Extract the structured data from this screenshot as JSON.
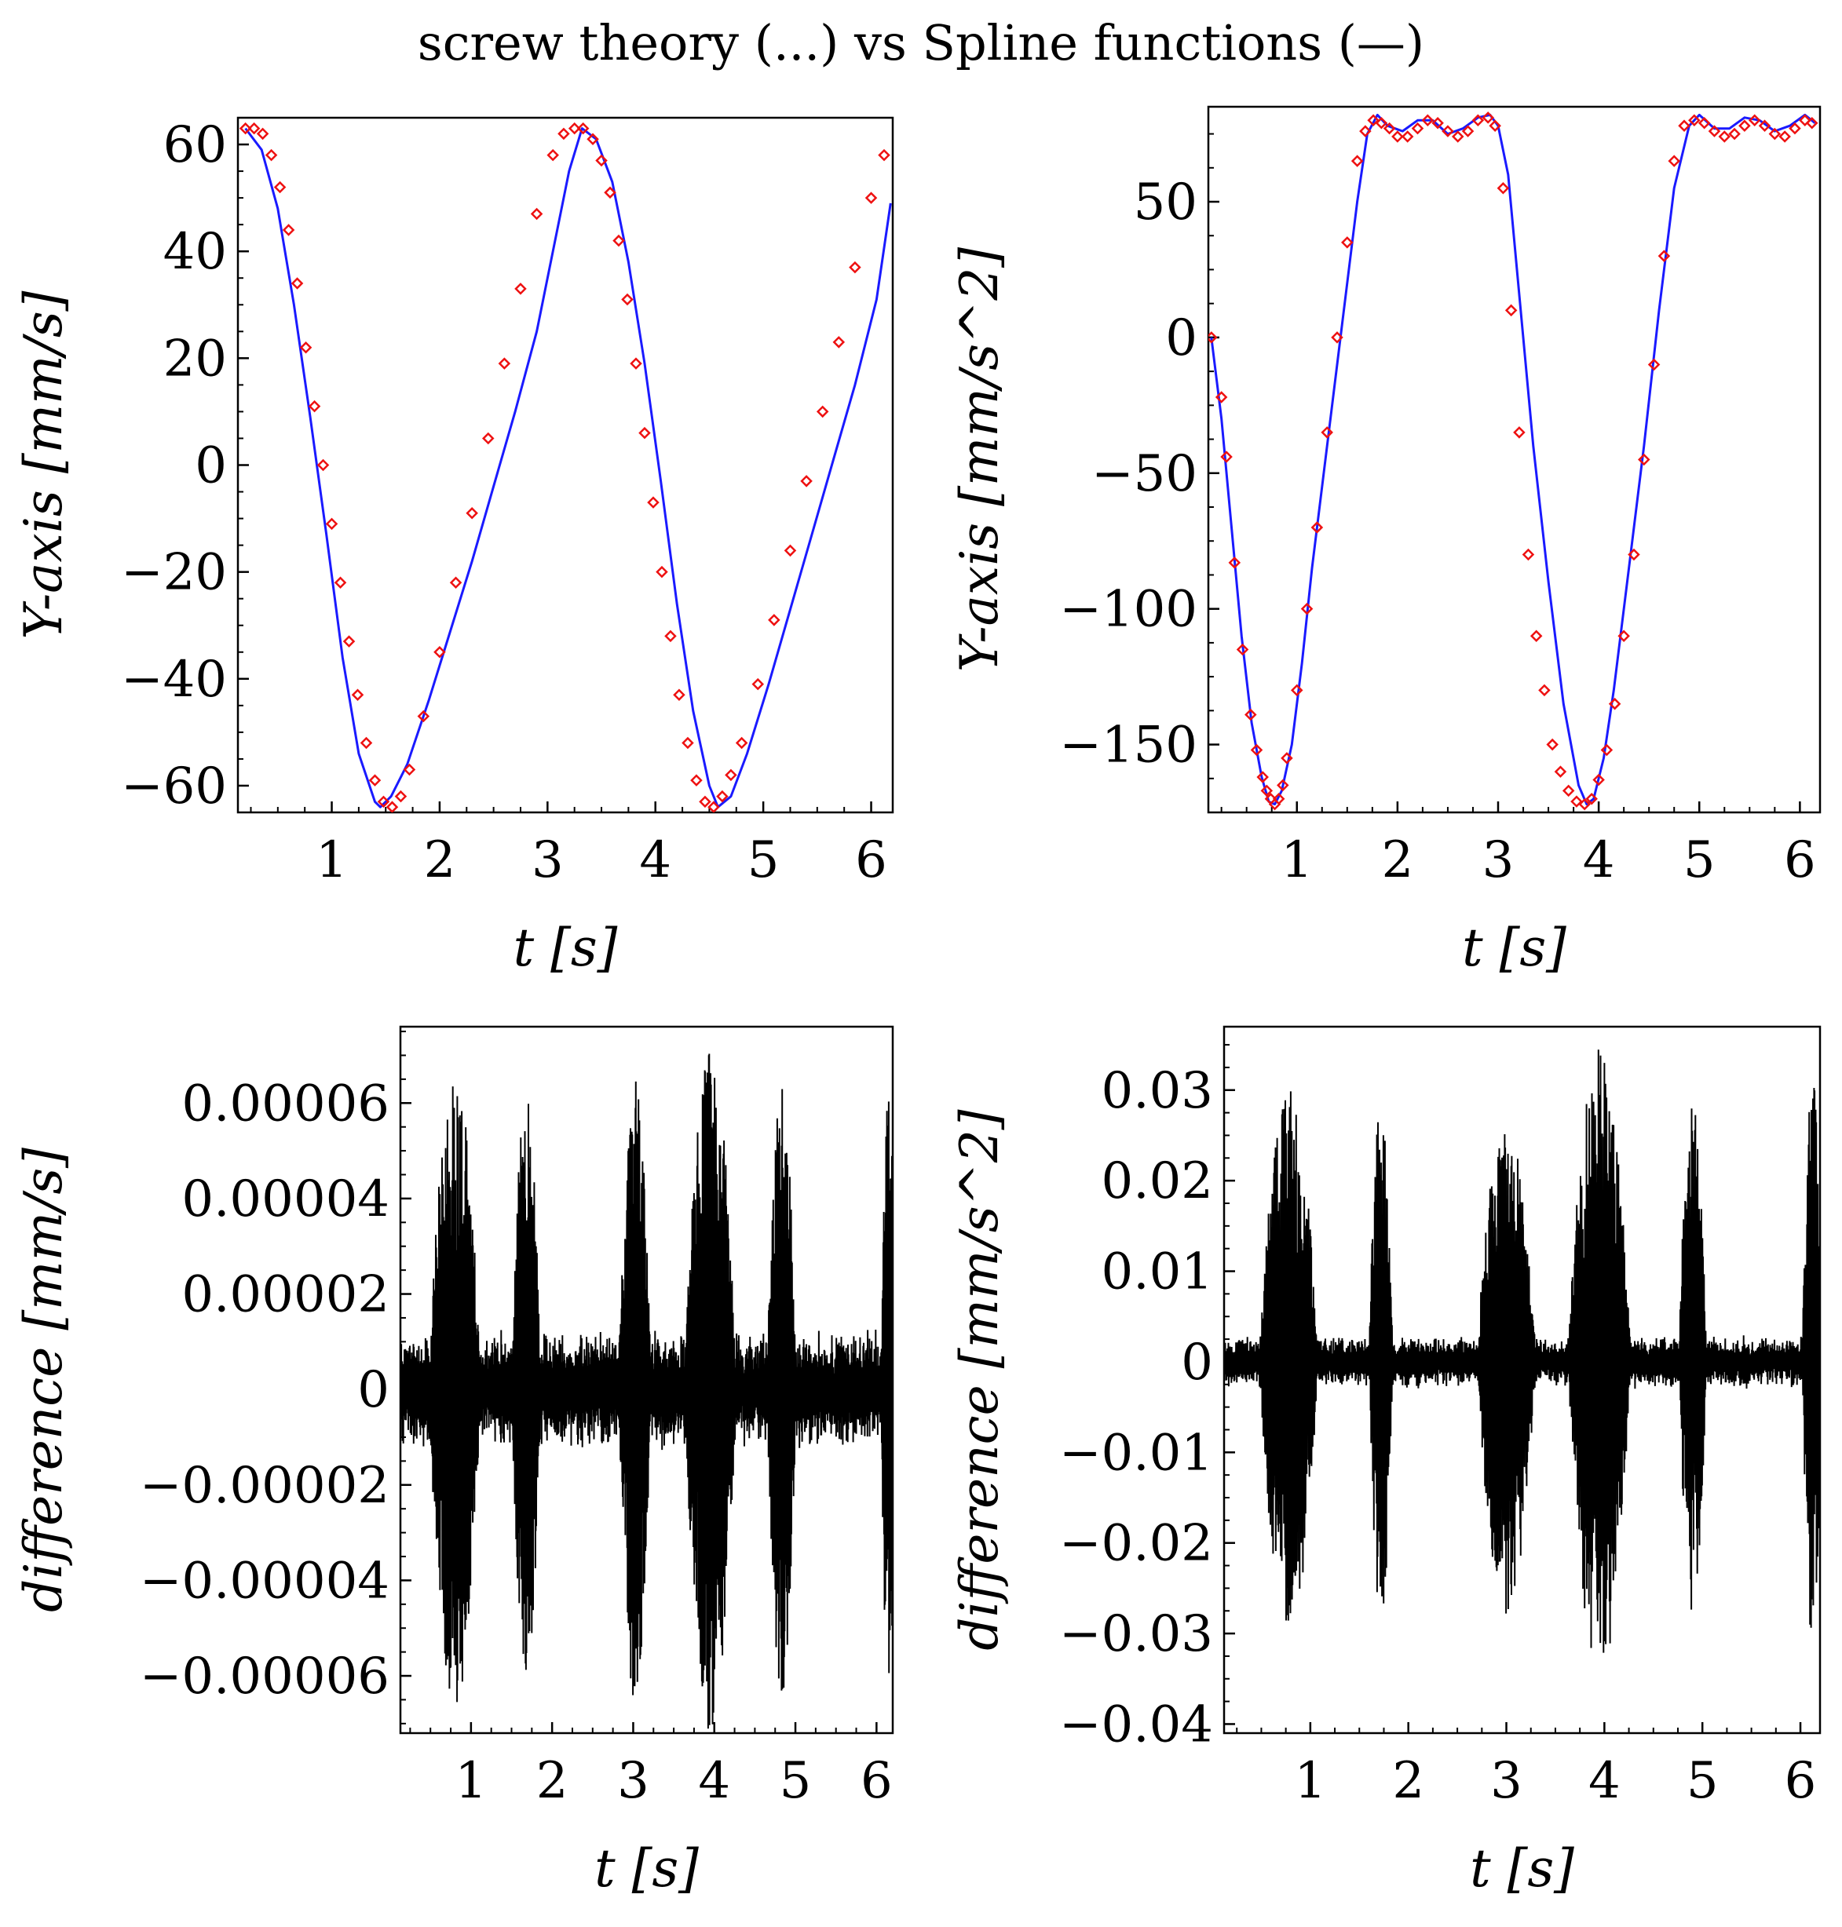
{
  "figure_title": "screw theory (...) vs Spline functions (—)",
  "colors": {
    "spline": "#1a1aff",
    "screw": "#ee1111",
    "difference": "#000000",
    "frame": "#000000"
  },
  "chart_data": [
    {
      "id": "velocity",
      "type": "line",
      "title": "",
      "xlabel": "t [s]",
      "ylabel": "Y-axis [mm/s]",
      "xlim": [
        0.13,
        6.2
      ],
      "ylim": [
        -65,
        65
      ],
      "xticks": [
        1,
        2,
        3,
        4,
        5,
        6
      ],
      "xticklabels": [
        "1",
        "2",
        "3",
        "4",
        "5",
        "6"
      ],
      "yticks": [
        60,
        40,
        20,
        0,
        -20,
        -40,
        -60
      ],
      "yticklabels": [
        "60",
        "40",
        "20",
        "0",
        "−20",
        "−40",
        "−60"
      ],
      "series": [
        {
          "name": "Spline functions",
          "style": "solid",
          "x": [
            0.2,
            0.35,
            0.5,
            0.65,
            0.8,
            0.95,
            1.1,
            1.25,
            1.4,
            1.45,
            1.55,
            1.7,
            1.9,
            2.1,
            2.3,
            2.5,
            2.7,
            2.9,
            3.05,
            3.2,
            3.32,
            3.45,
            3.6,
            3.75,
            3.9,
            4.05,
            4.2,
            4.35,
            4.5,
            4.58,
            4.7,
            4.85,
            5.05,
            5.25,
            5.45,
            5.65,
            5.85,
            6.05,
            6.18
          ],
          "y": [
            63,
            59,
            48,
            30,
            9,
            -13,
            -36,
            -54,
            -63,
            -64,
            -62,
            -56,
            -44,
            -31,
            -18,
            -4,
            10,
            25,
            40,
            55,
            63,
            61,
            53,
            38,
            19,
            -3,
            -26,
            -46,
            -60,
            -64,
            -62,
            -54,
            -41,
            -27,
            -13,
            1,
            15,
            31,
            49
          ]
        },
        {
          "name": "screw theory",
          "style": "markers",
          "x": [
            0.2,
            0.28,
            0.36,
            0.44,
            0.52,
            0.6,
            0.68,
            0.76,
            0.84,
            0.92,
            1.0,
            1.08,
            1.16,
            1.24,
            1.32,
            1.4,
            1.48,
            1.56,
            1.64,
            1.72,
            1.85,
            2.0,
            2.15,
            2.3,
            2.45,
            2.6,
            2.75,
            2.9,
            3.05,
            3.15,
            3.25,
            3.33,
            3.42,
            3.5,
            3.58,
            3.66,
            3.74,
            3.82,
            3.9,
            3.98,
            4.06,
            4.14,
            4.22,
            4.3,
            4.38,
            4.46,
            4.54,
            4.62,
            4.7,
            4.8,
            4.95,
            5.1,
            5.25,
            5.4,
            5.55,
            5.7,
            5.85,
            6.0,
            6.12
          ],
          "y": [
            63,
            63,
            62,
            58,
            52,
            44,
            34,
            22,
            11,
            0,
            -11,
            -22,
            -33,
            -43,
            -52,
            -59,
            -63,
            -64,
            -62,
            -57,
            -47,
            -35,
            -22,
            -9,
            5,
            19,
            33,
            47,
            58,
            62,
            63,
            63,
            61,
            57,
            51,
            42,
            31,
            19,
            6,
            -7,
            -20,
            -32,
            -43,
            -52,
            -59,
            -63,
            -64,
            -62,
            -58,
            -52,
            -41,
            -29,
            -16,
            -3,
            10,
            23,
            37,
            50,
            58
          ]
        }
      ]
    },
    {
      "id": "acceleration",
      "type": "line",
      "title": "",
      "xlabel": "t [s]",
      "ylabel": "Y-axis [mm/s^2]",
      "xlim": [
        0.12,
        6.2
      ],
      "ylim": [
        -175,
        85
      ],
      "xticks": [
        1,
        2,
        3,
        4,
        5,
        6
      ],
      "xticklabels": [
        "1",
        "2",
        "3",
        "4",
        "5",
        "6"
      ],
      "yticks": [
        50,
        0,
        -50,
        -100,
        -150
      ],
      "yticklabels": [
        "50",
        "0",
        "−50",
        "−100",
        "−150"
      ],
      "series": [
        {
          "name": "Spline functions",
          "style": "solid",
          "x": [
            0.15,
            0.25,
            0.35,
            0.45,
            0.55,
            0.65,
            0.72,
            0.78,
            0.85,
            0.95,
            1.05,
            1.15,
            1.3,
            1.45,
            1.6,
            1.7,
            1.8,
            1.9,
            2.05,
            2.2,
            2.35,
            2.5,
            2.65,
            2.8,
            2.92,
            3.0,
            3.1,
            3.2,
            3.35,
            3.5,
            3.65,
            3.8,
            3.88,
            3.95,
            4.05,
            4.15,
            4.3,
            4.45,
            4.6,
            4.75,
            4.9,
            5.0,
            5.15,
            5.3,
            5.45,
            5.6,
            5.75,
            5.9,
            6.05,
            6.15
          ],
          "y": [
            0,
            -30,
            -70,
            -110,
            -142,
            -162,
            -171,
            -172,
            -167,
            -150,
            -120,
            -85,
            -40,
            5,
            50,
            75,
            82,
            78,
            76,
            80,
            80,
            75,
            77,
            81,
            82,
            78,
            60,
            20,
            -40,
            -90,
            -135,
            -165,
            -172,
            -170,
            -155,
            -130,
            -85,
            -40,
            10,
            55,
            78,
            82,
            77,
            77,
            81,
            80,
            76,
            78,
            82,
            79
          ]
        },
        {
          "name": "screw theory",
          "style": "markers",
          "x": [
            0.15,
            0.25,
            0.3,
            0.38,
            0.46,
            0.54,
            0.6,
            0.66,
            0.7,
            0.74,
            0.78,
            0.82,
            0.86,
            0.9,
            1.0,
            1.1,
            1.2,
            1.3,
            1.4,
            1.5,
            1.6,
            1.68,
            1.76,
            1.84,
            1.92,
            2.0,
            2.1,
            2.2,
            2.3,
            2.4,
            2.5,
            2.6,
            2.7,
            2.8,
            2.9,
            2.97,
            3.05,
            3.13,
            3.21,
            3.3,
            3.38,
            3.46,
            3.54,
            3.62,
            3.7,
            3.78,
            3.86,
            3.93,
            4.0,
            4.08,
            4.16,
            4.25,
            4.35,
            4.45,
            4.55,
            4.65,
            4.75,
            4.85,
            4.95,
            5.05,
            5.15,
            5.25,
            5.35,
            5.45,
            5.55,
            5.65,
            5.75,
            5.85,
            5.95,
            6.05,
            6.12
          ],
          "y": [
            0,
            -22,
            -44,
            -83,
            -115,
            -139,
            -152,
            -162,
            -167,
            -170,
            -172,
            -170,
            -165,
            -155,
            -130,
            -100,
            -70,
            -35,
            0,
            35,
            65,
            76,
            80,
            79,
            77,
            74,
            74,
            77,
            80,
            79,
            76,
            74,
            76,
            80,
            81,
            78,
            55,
            10,
            -35,
            -80,
            -110,
            -130,
            -150,
            -160,
            -167,
            -171,
            -172,
            -170,
            -163,
            -152,
            -135,
            -110,
            -80,
            -45,
            -10,
            30,
            65,
            78,
            80,
            79,
            76,
            74,
            75,
            78,
            80,
            78,
            75,
            74,
            77,
            80,
            79
          ]
        }
      ]
    },
    {
      "id": "velocity-difference",
      "type": "line",
      "title": "",
      "xlabel": "t [s]",
      "ylabel": "difference [mm/s]",
      "xlim": [
        0.13,
        6.2
      ],
      "ylim": [
        -7.2e-05,
        7.6e-05
      ],
      "xticks": [
        1,
        2,
        3,
        4,
        5,
        6
      ],
      "xticklabels": [
        "1",
        "2",
        "3",
        "4",
        "5",
        "6"
      ],
      "yticks": [
        6e-05,
        4e-05,
        2e-05,
        0,
        -2e-05,
        -4e-05,
        -6e-05
      ],
      "yticklabels": [
        "0.00006",
        "0.00004",
        "0.00002",
        "0",
        "−0.00002",
        "−0.00004",
        "−0.00006"
      ],
      "series": [
        {
          "name": "difference",
          "style": "noise",
          "bursts": [
            {
              "center": 0.8,
              "halfwidth": 0.32,
              "amplitude": 6.7e-05
            },
            {
              "center": 1.68,
              "halfwidth": 0.18,
              "amplitude": 6.3e-05
            },
            {
              "center": 3.02,
              "halfwidth": 0.2,
              "amplitude": 6.5e-05
            },
            {
              "center": 3.95,
              "halfwidth": 0.32,
              "amplitude": 7.2e-05
            },
            {
              "center": 4.83,
              "halfwidth": 0.18,
              "amplitude": 6.4e-05
            },
            {
              "center": 6.15,
              "halfwidth": 0.1,
              "amplitude": 6.5e-05
            }
          ],
          "baseline_amplitude": 1.3e-05
        }
      ]
    },
    {
      "id": "acceleration-difference",
      "type": "line",
      "title": "",
      "xlabel": "t [s]",
      "ylabel": "difference [mm/s^2]",
      "xlim": [
        0.12,
        6.2
      ],
      "ylim": [
        -0.041,
        0.037
      ],
      "xticks": [
        1,
        2,
        3,
        4,
        5,
        6
      ],
      "xticklabels": [
        "1",
        "2",
        "3",
        "4",
        "5",
        "6"
      ],
      "yticks": [
        0.03,
        0.02,
        0.01,
        0,
        -0.01,
        -0.02,
        -0.03,
        -0.04
      ],
      "yticklabels": [
        "0.03",
        "0.02",
        "0.01",
        "0",
        "−0.01",
        "−0.02",
        "−0.03",
        "−0.04"
      ],
      "series": [
        {
          "name": "difference",
          "style": "noise",
          "bursts": [
            {
              "center": 0.78,
              "halfwidth": 0.3,
              "amplitude": 0.03
            },
            {
              "center": 1.72,
              "halfwidth": 0.12,
              "amplitude": 0.029
            },
            {
              "center": 3.0,
              "halfwidth": 0.3,
              "amplitude": 0.028
            },
            {
              "center": 3.95,
              "halfwidth": 0.32,
              "amplitude": 0.035
            },
            {
              "center": 4.9,
              "halfwidth": 0.14,
              "amplitude": 0.029
            },
            {
              "center": 6.12,
              "halfwidth": 0.1,
              "amplitude": 0.032
            }
          ],
          "baseline_amplitude": 0.003
        }
      ]
    }
  ]
}
